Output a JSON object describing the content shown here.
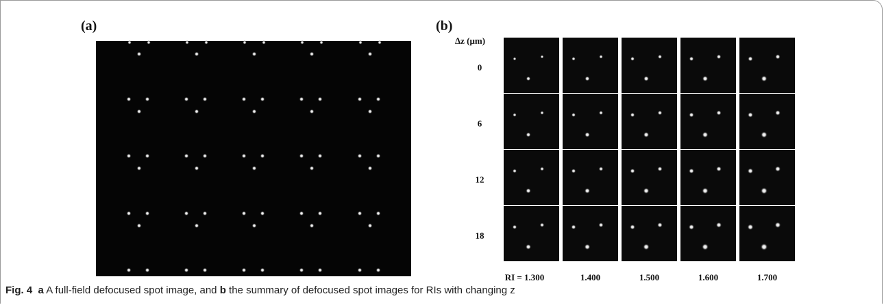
{
  "panel_a": {
    "label": "(a)"
  },
  "panel_b": {
    "label": "(b)",
    "row_header": "Δz (μm)",
    "rows": [
      "0",
      "6",
      "12",
      "18"
    ],
    "columns": [
      "RI = 1.300",
      "1.400",
      "1.500",
      "1.600",
      "1.700"
    ]
  },
  "caption": {
    "label": "Fig. 4",
    "a_marker": "a",
    "a_text": "A full-field defocused spot image, and",
    "b_marker": "b",
    "b_text": "the summary of defocused spot images for RIs with changing z"
  }
}
